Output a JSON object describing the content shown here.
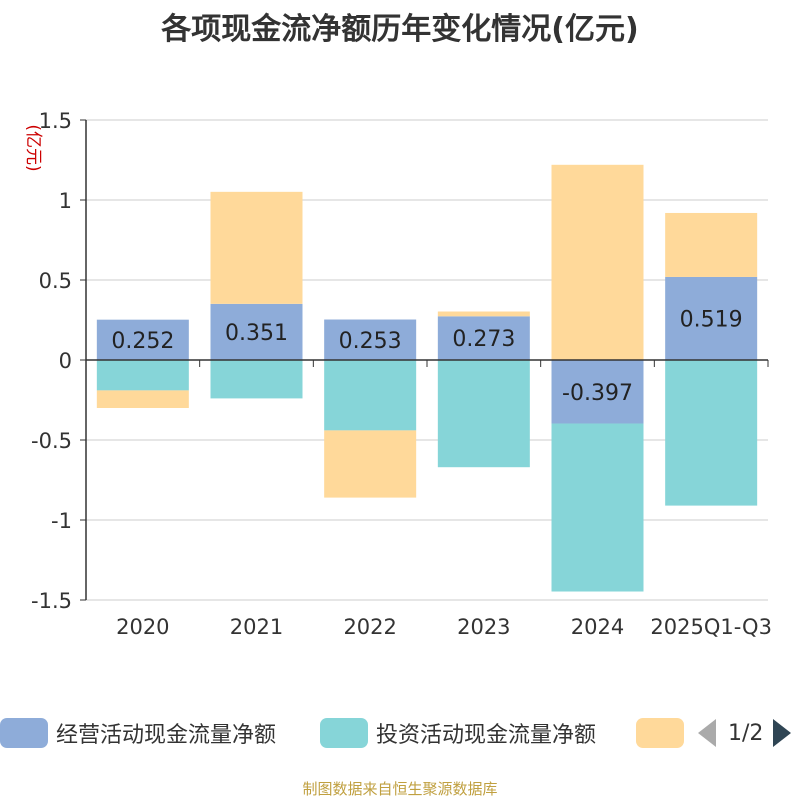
{
  "chart_data": {
    "type": "bar",
    "stacked": true,
    "title": "各项现金流净额历年变化情况(亿元)",
    "ylabel": "(亿元)",
    "ylim": [
      -1.5,
      1.5
    ],
    "yticks": [
      1.5,
      1,
      0.5,
      0,
      -0.5,
      -1,
      -1.5
    ],
    "ytick_labels": [
      "1.5",
      "1",
      "0.5",
      "0",
      "-0.5",
      "-1",
      "-1.5"
    ],
    "categories": [
      "2020",
      "2021",
      "2022",
      "2023",
      "2024",
      "2025Q1-Q3"
    ],
    "series": [
      {
        "name": "经营活动现金流量净额",
        "color": "#8eacd9",
        "values": [
          0.252,
          0.351,
          0.253,
          0.273,
          -0.397,
          0.519
        ],
        "data_labels": [
          "0.252",
          "0.351",
          "0.253",
          "0.273",
          "-0.397",
          "0.519"
        ]
      },
      {
        "name": "投资活动现金流量净额",
        "color": "#86d5d8",
        "values": [
          -0.19,
          -0.24,
          -0.44,
          -0.67,
          -1.05,
          -0.91
        ]
      },
      {
        "name": "",
        "color": "#ffd99a",
        "values": [
          -0.11,
          0.7,
          -0.42,
          0.03,
          1.22,
          0.4
        ]
      }
    ],
    "legend_position": "bottom",
    "grid": true
  },
  "legend": {
    "page": "1/2"
  },
  "source": "制图数据来自恒生聚源数据库"
}
